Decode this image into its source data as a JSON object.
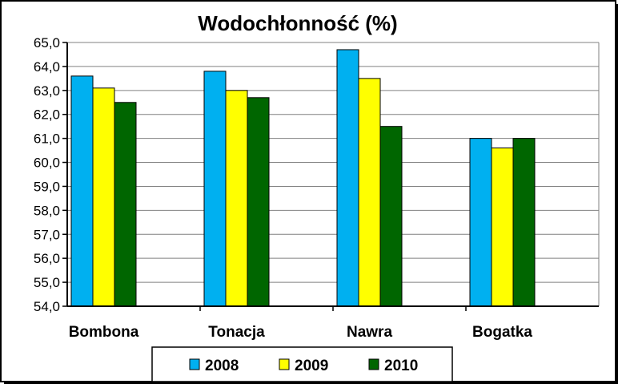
{
  "chart_data": {
    "type": "bar",
    "title": "Wodochłonność (%)",
    "xlabel": "",
    "ylabel": "",
    "categories": [
      "Bombona",
      "Tonacja",
      "Nawra",
      "Bogatka"
    ],
    "series": [
      {
        "name": "2008",
        "color": "#00b0f0",
        "values": [
          63.6,
          63.8,
          64.7,
          61.0
        ]
      },
      {
        "name": "2009",
        "color": "#ffff00",
        "values": [
          63.1,
          63.0,
          63.5,
          60.6
        ]
      },
      {
        "name": "2010",
        "color": "#006600",
        "values": [
          62.5,
          62.7,
          61.5,
          61.0
        ]
      }
    ],
    "ylim": [
      54.0,
      65.0
    ],
    "yticks": [
      "54,0",
      "55,0",
      "56,0",
      "57,0",
      "58,0",
      "59,0",
      "60,0",
      "61,0",
      "62,0",
      "63,0",
      "64,0",
      "65,0"
    ],
    "grid": true,
    "legend_position": "bottom"
  }
}
